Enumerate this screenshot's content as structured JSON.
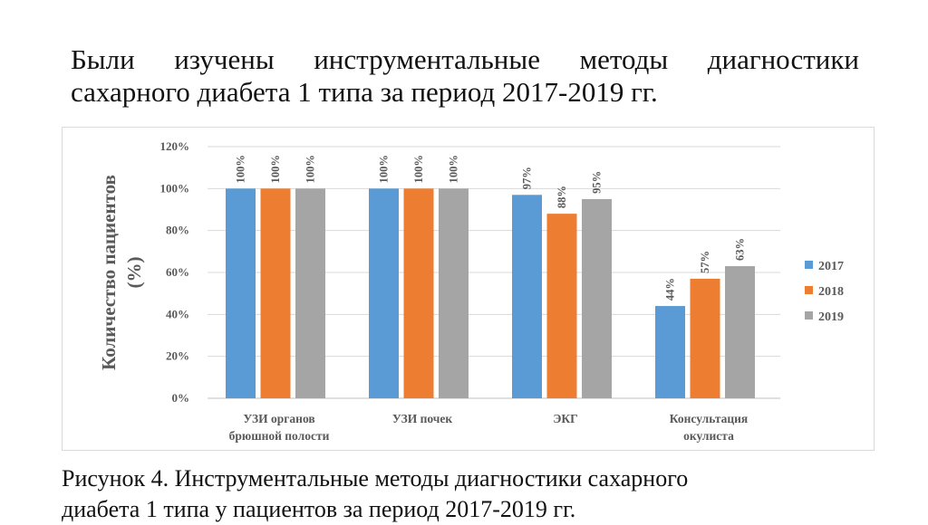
{
  "title": {
    "line1": "Были изучены инструментальные методы диагностики",
    "line2": "сахарного диабета 1 типа за период 2017-2019 гг."
  },
  "caption": {
    "line1": "Рисунок 4. Инструментальные методы диагностики сахарного",
    "line2": "диабета 1 типа у пациентов за период 2017-2019 гг."
  },
  "chart_data": {
    "type": "bar",
    "title": "",
    "xlabel": "",
    "ylabel_lines": [
      "Количество пациентов",
      "(%)"
    ],
    "ylim": [
      0,
      120
    ],
    "yticks": [
      "0%",
      "20%",
      "40%",
      "60%",
      "80%",
      "100%",
      "120%"
    ],
    "grid": true,
    "legend_position": "right",
    "categories": [
      [
        "УЗИ органов",
        "брюшной полости"
      ],
      [
        "УЗИ почек"
      ],
      [
        "ЭКГ"
      ],
      [
        "Консультация",
        "окулиста"
      ]
    ],
    "series": [
      {
        "name": "2017",
        "color": "#5b9bd5",
        "values": [
          100,
          100,
          97,
          44
        ],
        "labels": [
          "100%",
          "100%",
          "97%",
          "44%"
        ]
      },
      {
        "name": "2018",
        "color": "#ed7d31",
        "values": [
          100,
          100,
          88,
          57
        ],
        "labels": [
          "100%",
          "100%",
          "88%",
          "57%"
        ]
      },
      {
        "name": "2019",
        "color": "#a5a5a5",
        "values": [
          100,
          100,
          95,
          63
        ],
        "labels": [
          "100%",
          "100%",
          "95%",
          "63%"
        ]
      }
    ]
  }
}
